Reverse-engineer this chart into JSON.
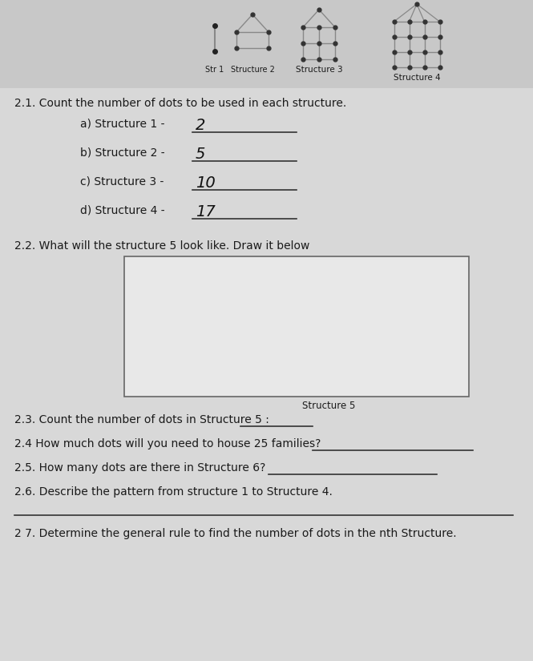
{
  "bg_color": "#c8c8c8",
  "text_color": "#1a1a1a",
  "struct_line_color": "#888888",
  "struct_dot_color": "#333333",
  "title_s1": "Str 1",
  "title_s2": "Structure 2",
  "title_s3": "Structure 3",
  "title_s4": "Structure 4",
  "q21_text": "2.1. Count the number of dots to be used in each structure.",
  "q21a": "a) Structure 1 - ",
  "q21a_ans": "2",
  "q21b": "b) Structure 2 - ",
  "q21b_ans": "5",
  "q21c": "c) Structure 3 - ",
  "q21c_ans": "10",
  "q21d": "d) Structure 4 - ",
  "q21d_ans": "17",
  "q22_text": "2.2. What will the structure 5 look like. Draw it below",
  "struct5_label": "Structure 5",
  "q23_text": "2.3. Count the number of dots in Structure 5 :",
  "q24_text": "2.4 How much dots will you need to house 25 families?",
  "q25_text": "2.5. How many dots are there in Structure 6?",
  "q26_text": "2.6. Describe the pattern from structure 1 to Structure 4.",
  "q27_text": "2 7. Determine the general rule to find the number of dots in the nth Structure."
}
